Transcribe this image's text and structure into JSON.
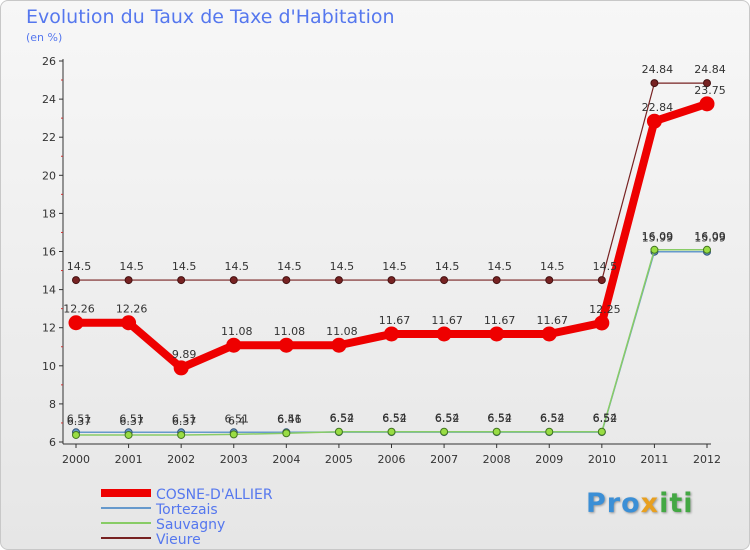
{
  "chart_data": {
    "type": "line",
    "title": "Evolution du Taux de Taxe d'Habitation",
    "subtitle": "(en %)",
    "xlabel": "",
    "ylabel": "",
    "x": [
      "2000",
      "2001",
      "2002",
      "2003",
      "2004",
      "2005",
      "2006",
      "2007",
      "2008",
      "2009",
      "2010",
      "2011",
      "2012"
    ],
    "ylim": [
      6,
      26
    ],
    "yticks": [
      "6",
      "8",
      "10",
      "12",
      "14",
      "16",
      "18",
      "20",
      "22",
      "24",
      "26"
    ],
    "series": [
      {
        "name": "COSNE-D'ALLIER",
        "color": "#ee0000",
        "values": [
          12.26,
          12.26,
          9.89,
          11.08,
          11.08,
          11.08,
          11.67,
          11.67,
          11.67,
          11.67,
          12.25,
          22.84,
          23.75
        ],
        "labels": [
          "12.26",
          "12.26",
          "9.89",
          "11.08",
          "11.08",
          "11.08",
          "11.67",
          "11.67",
          "11.67",
          "11.67",
          "12.25",
          "22.84",
          "23.75"
        ]
      },
      {
        "name": "Tortezais",
        "color": "#6699cc",
        "values": [
          6.51,
          6.51,
          6.51,
          6.51,
          6.51,
          6.52,
          6.52,
          6.52,
          6.52,
          6.52,
          6.52,
          15.99,
          15.99
        ],
        "labels": [
          "6.51",
          "6.51",
          "6.51",
          "6.51",
          "6.51",
          "6.52",
          "6.52",
          "6.52",
          "6.52",
          "6.52",
          "6.52",
          "15.99",
          "15.99"
        ]
      },
      {
        "name": "Sauvagny",
        "color": "#88cc66",
        "values": [
          6.37,
          6.37,
          6.37,
          6.4,
          6.46,
          6.54,
          6.54,
          6.54,
          6.54,
          6.54,
          6.54,
          16.09,
          16.09
        ],
        "labels": [
          "6.37",
          "6.37",
          "6.37",
          "6.4",
          "6.46",
          "6.54",
          "6.54",
          "6.54",
          "6.54",
          "6.54",
          "6.54",
          "16.09",
          "16.09"
        ]
      },
      {
        "name": "Vieure",
        "color": "#772222",
        "values": [
          14.5,
          14.5,
          14.5,
          14.5,
          14.5,
          14.5,
          14.5,
          14.5,
          14.5,
          14.5,
          14.5,
          24.84,
          24.84
        ],
        "labels": [
          "14.5",
          "14.5",
          "14.5",
          "14.5",
          "14.5",
          "14.5",
          "14.5",
          "14.5",
          "14.5",
          "14.5",
          "14.5",
          "24.84",
          "24.84"
        ]
      }
    ],
    "legend": {
      "placement": "bottom-left",
      "items": [
        "COSNE-D'ALLIER",
        "Tortezais",
        "Sauvagny",
        "Vieure"
      ]
    },
    "grid": false
  },
  "logo": {
    "part1": "Pro",
    "part2": "x",
    "part3": "iti"
  }
}
